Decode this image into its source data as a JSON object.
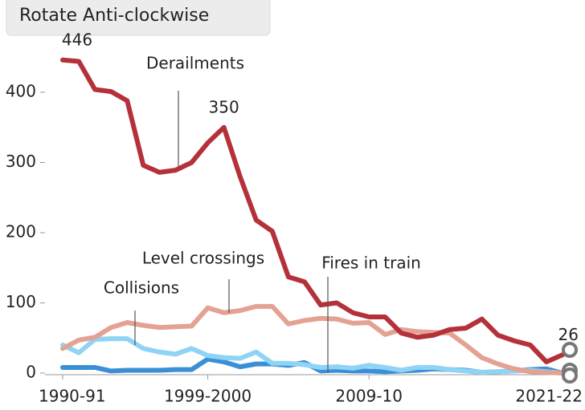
{
  "ui": {
    "button": "Rotate Anti-clockwise"
  },
  "chart_data": {
    "type": "line",
    "categories": [
      "1990-91",
      null,
      null,
      null,
      null,
      null,
      null,
      null,
      null,
      "1999-2000",
      null,
      null,
      null,
      null,
      null,
      null,
      null,
      null,
      null,
      "2009-10",
      null,
      null,
      null,
      null,
      null,
      null,
      null,
      null,
      null,
      null,
      null,
      "2021-22"
    ],
    "series": [
      {
        "name": "Derailments",
        "color": "#b5313a",
        "values": [
          446,
          444,
          404,
          401,
          388,
          296,
          286,
          289,
          300,
          328,
          350,
          280,
          218,
          202,
          137,
          130,
          97,
          100,
          86,
          80,
          80,
          57,
          51,
          54,
          62,
          64,
          77,
          54,
          46,
          40,
          16,
          26
        ],
        "value_labels": [
          "446",
          null,
          null,
          null,
          null,
          null,
          null,
          null,
          null,
          null,
          "350",
          null,
          null,
          null,
          null,
          null,
          null,
          null,
          null,
          null,
          null,
          null,
          null,
          null,
          null,
          null,
          null,
          null,
          null,
          null,
          null,
          "26"
        ]
      },
      {
        "name": "Level crossings",
        "color": "#e3a293",
        "values": [
          35,
          47,
          51,
          65,
          72,
          68,
          65,
          66,
          67,
          93,
          86,
          89,
          95,
          95,
          70,
          75,
          78,
          77,
          71,
          72,
          55,
          62,
          59,
          58,
          57,
          40,
          22,
          13,
          6,
          2,
          1,
          0
        ]
      },
      {
        "name": "Collisions",
        "color": "#8fd3f5",
        "values": [
          40,
          29,
          48,
          49,
          49,
          35,
          30,
          27,
          35,
          25,
          22,
          21,
          30,
          14,
          14,
          12,
          8,
          9,
          7,
          11,
          8,
          4,
          8,
          8,
          5,
          3,
          1,
          2,
          3,
          4,
          2,
          0
        ]
      },
      {
        "name": "Fires in train",
        "color": "#3b8fd6",
        "values": [
          8,
          8,
          8,
          3,
          4,
          4,
          4,
          5,
          5,
          20,
          16,
          9,
          13,
          13,
          11,
          15,
          3,
          4,
          3,
          3,
          2,
          3,
          4,
          6,
          5,
          4,
          1,
          2,
          3,
          5,
          6,
          0
        ]
      }
    ],
    "ylim": [
      0,
      460
    ],
    "yticks": [
      0,
      100,
      200,
      300,
      400
    ],
    "grid": false
  }
}
